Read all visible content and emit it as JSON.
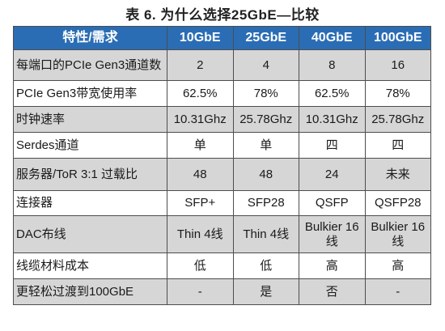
{
  "caption": "表 6. 为什么选择25GbE—比较",
  "table": {
    "headers": [
      "特性/需求",
      "10GbE",
      "25GbE",
      "40GbE",
      "100GbE"
    ],
    "rows": [
      {
        "label": "每端口的PCIe Gen3通道数",
        "values": [
          "2",
          "4",
          "8",
          "16"
        ]
      },
      {
        "label": "PCIe Gen3带宽使用率",
        "values": [
          "62.5%",
          "78%",
          "62.5%",
          "78%"
        ]
      },
      {
        "label": "时钟速率",
        "values": [
          "10.31Ghz",
          "25.78Ghz",
          "10.31Ghz",
          "25.78Ghz"
        ]
      },
      {
        "label": "Serdes通道",
        "values": [
          "单",
          "单",
          "四",
          "四"
        ]
      },
      {
        "label": "服务器/ToR 3:1 过载比",
        "values": [
          "48",
          "48",
          "24",
          "未来"
        ]
      },
      {
        "label": "连接器",
        "values": [
          "SFP+",
          "SFP28",
          "QSFP",
          "QSFP28"
        ]
      },
      {
        "label": "DAC布线",
        "values": [
          "Thin 4线",
          "Thin 4线",
          "Bulkier 16线",
          "Bulkier 16线"
        ]
      },
      {
        "label": "线缆材料成本",
        "values": [
          "低",
          "低",
          "高",
          "高"
        ]
      },
      {
        "label": "更轻松过渡到100GbE",
        "values": [
          "-",
          "是",
          "否",
          "-"
        ]
      }
    ]
  }
}
